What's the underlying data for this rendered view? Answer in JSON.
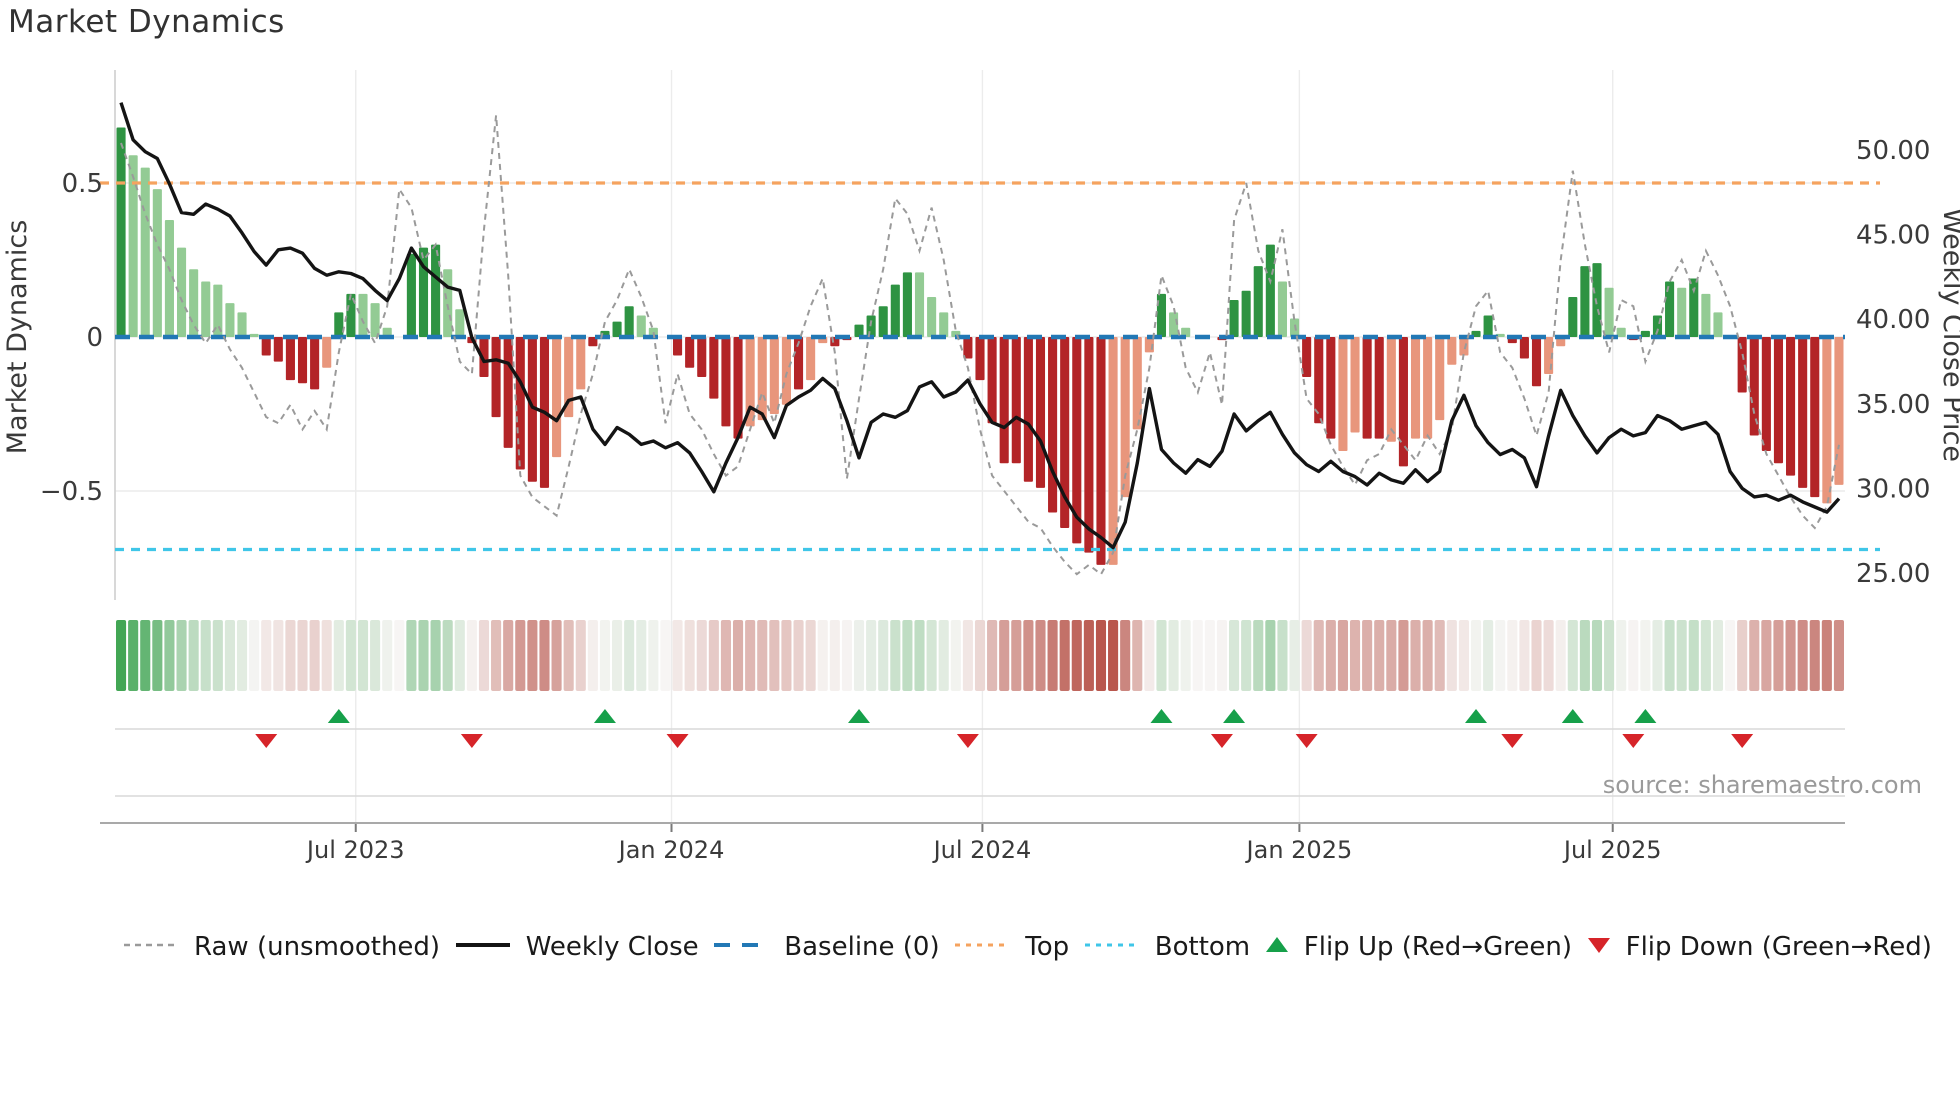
{
  "title": "Market Dynamics",
  "source_text": "source: sharemaestro.com",
  "y_axis_left": {
    "label": "Market Dynamics",
    "ticks": [
      {
        "label": "0.5",
        "value": 0.5
      },
      {
        "label": "0",
        "value": 0
      },
      {
        "label": "−0.5",
        "value": -0.5
      }
    ]
  },
  "y_axis_right": {
    "label": "Weekly Close Price",
    "ticks": [
      {
        "label": "50.00",
        "value": 50
      },
      {
        "label": "45.00",
        "value": 45
      },
      {
        "label": "40.00",
        "value": 40
      },
      {
        "label": "35.00",
        "value": 35
      },
      {
        "label": "30.00",
        "value": 30
      },
      {
        "label": "25.00",
        "value": 25
      }
    ]
  },
  "x_axis": {
    "ticks": [
      {
        "label": "Jul 2023",
        "week": 19.4
      },
      {
        "label": "Jan 2024",
        "week": 45.5
      },
      {
        "label": "Jul 2024",
        "week": 71.2
      },
      {
        "label": "Jan 2025",
        "week": 97.4
      },
      {
        "label": "Jul 2025",
        "week": 123.3
      }
    ]
  },
  "legend": {
    "items": [
      {
        "label": "Raw (unsmoothed)",
        "key": "raw"
      },
      {
        "label": "Weekly Close",
        "key": "close"
      },
      {
        "label": "Baseline (0)",
        "key": "baseline"
      },
      {
        "label": "Top",
        "key": "top"
      },
      {
        "label": "Bottom",
        "key": "bottom"
      },
      {
        "label": "Flip Up (Red→Green)",
        "key": "flip_up"
      },
      {
        "label": "Flip Down (Green→Red)",
        "key": "flip_down"
      }
    ]
  },
  "colors": {
    "bar_green_dark": "#2e9342",
    "bar_green_light": "#93cb94",
    "bar_red_dark": "#b32427",
    "bar_red_light": "#e8967c",
    "baseline_blue": "#2278b5",
    "top_orange": "#f5a35f",
    "bottom_cyan": "#3fc6e8",
    "raw_gray": "#9a9a9a",
    "close_black": "#141414",
    "flip_up_green": "#16a04a",
    "flip_down_red": "#d62429",
    "heat_green": "#2f9e44",
    "heat_red": "#b8554b",
    "heat_mid": "#f7f5f4",
    "grid": "#ececec",
    "grid_dark": "#d9d9d9",
    "axis_line": "#a9a9a9",
    "tick_text": "#3a3a3a",
    "source_gray": "#9a9a9a"
  },
  "chart_data": {
    "type": "combo",
    "subtype": [
      "bar",
      "line",
      "heatmap",
      "markers"
    ],
    "title": "Market Dynamics",
    "xlabel": "",
    "ylabel_left": "Market Dynamics",
    "ylabel_right": "Weekly Close Price",
    "weeks": 143,
    "x_range_note": "weekly data, ticks Jul 2023 / Jan 2024 / Jul 2024 / Jan 2025 / Jul 2025",
    "left_ylim": [
      -0.87,
      0.87
    ],
    "right_ylim": [
      23.4,
      54.7
    ],
    "baseline": 0,
    "top_threshold": 0.5,
    "bottom_threshold": -0.69,
    "grid": true,
    "legend_position": "bottom",
    "bars_values": [
      0.68,
      0.59,
      0.55,
      0.48,
      0.38,
      0.29,
      0.22,
      0.18,
      0.17,
      0.11,
      0.08,
      0.01,
      -0.06,
      -0.08,
      -0.14,
      -0.15,
      -0.17,
      -0.1,
      0.08,
      0.14,
      0.14,
      0.11,
      0.03,
      0.0,
      0.27,
      0.29,
      0.3,
      0.22,
      0.09,
      -0.02,
      -0.13,
      -0.26,
      -0.36,
      -0.43,
      -0.47,
      -0.49,
      -0.39,
      -0.26,
      -0.17,
      -0.03,
      0.02,
      0.05,
      0.1,
      0.07,
      0.03,
      0.0,
      -0.06,
      -0.1,
      -0.13,
      -0.2,
      -0.29,
      -0.33,
      -0.29,
      -0.27,
      -0.25,
      -0.22,
      -0.17,
      -0.14,
      -0.02,
      -0.03,
      -0.01,
      0.04,
      0.07,
      0.1,
      0.17,
      0.21,
      0.21,
      0.13,
      0.08,
      0.02,
      -0.07,
      -0.14,
      -0.28,
      -0.41,
      -0.41,
      -0.47,
      -0.49,
      -0.57,
      -0.62,
      -0.67,
      -0.7,
      -0.74,
      -0.74,
      -0.52,
      -0.3,
      -0.05,
      0.14,
      0.08,
      0.03,
      0.0,
      0.0,
      -0.01,
      0.12,
      0.15,
      0.23,
      0.3,
      0.18,
      0.06,
      -0.13,
      -0.28,
      -0.33,
      -0.37,
      -0.31,
      -0.33,
      -0.33,
      -0.34,
      -0.42,
      -0.33,
      -0.33,
      -0.27,
      -0.09,
      -0.06,
      0.02,
      0.07,
      0.01,
      -0.02,
      -0.07,
      -0.16,
      -0.12,
      -0.03,
      0.13,
      0.23,
      0.24,
      0.16,
      0.03,
      -0.01,
      0.02,
      0.07,
      0.18,
      0.16,
      0.19,
      0.14,
      0.08,
      0.0,
      -0.18,
      -0.32,
      -0.37,
      -0.41,
      -0.45,
      -0.49,
      -0.52,
      -0.54,
      -0.48
    ],
    "bars_shade": "DLLLLLLLLLLLDDDDDLDDLLLLDDDLLDDDDDDDLLLDDDDLLLDDDDDDLLLLDLLDDDDDDDLLLLDDDDDDDDDDDDLLLLDLLLLDDDDDLLDDDLLDDLDLLLLLDDLDDDLLDDDLLDDDDLDLLLDDDDDDDLL",
    "weekly_close": [
      52.8,
      50.6,
      49.9,
      49.5,
      48.0,
      46.3,
      46.2,
      46.8,
      46.5,
      46.1,
      45.1,
      44.0,
      43.2,
      44.1,
      44.2,
      43.9,
      43.0,
      42.6,
      42.8,
      42.7,
      42.4,
      41.7,
      41.1,
      42.4,
      44.2,
      43.1,
      42.5,
      41.9,
      41.7,
      38.9,
      37.5,
      37.6,
      37.4,
      36.3,
      34.8,
      34.5,
      34.0,
      35.2,
      35.4,
      33.5,
      32.6,
      33.6,
      33.2,
      32.6,
      32.8,
      32.4,
      32.7,
      32.1,
      31.0,
      29.8,
      31.5,
      33.0,
      34.8,
      34.4,
      33.0,
      34.9,
      35.4,
      35.8,
      36.5,
      35.9,
      34.0,
      31.8,
      33.9,
      34.4,
      34.2,
      34.6,
      36.0,
      36.3,
      35.4,
      35.7,
      36.4,
      35.0,
      33.9,
      33.6,
      34.2,
      33.8,
      32.8,
      31.0,
      29.5,
      28.3,
      27.6,
      27.1,
      26.5,
      28.0,
      31.5,
      35.9,
      32.3,
      31.5,
      30.9,
      31.7,
      31.3,
      32.2,
      34.4,
      33.4,
      34.0,
      34.5,
      33.2,
      32.1,
      31.4,
      31.0,
      31.6,
      31.0,
      30.7,
      30.2,
      30.9,
      30.5,
      30.3,
      31.1,
      30.4,
      31.0,
      34.0,
      35.5,
      33.7,
      32.7,
      32.0,
      32.3,
      31.8,
      30.1,
      33.1,
      35.8,
      34.3,
      33.1,
      32.1,
      33.0,
      33.5,
      33.1,
      33.3,
      34.3,
      34.0,
      33.5,
      33.7,
      33.9,
      33.2,
      31.0,
      30.0,
      29.5,
      29.6,
      29.3,
      29.6,
      29.2,
      28.9,
      28.6,
      29.4
    ],
    "raw_values": [
      0.63,
      0.52,
      0.4,
      0.3,
      0.22,
      0.12,
      0.04,
      -0.02,
      0.04,
      -0.04,
      -0.1,
      -0.18,
      -0.26,
      -0.28,
      -0.22,
      -0.3,
      -0.24,
      -0.3,
      -0.05,
      0.14,
      0.05,
      -0.02,
      0.1,
      0.48,
      0.42,
      0.25,
      0.3,
      0.1,
      -0.08,
      -0.12,
      0.35,
      0.72,
      0.2,
      -0.45,
      -0.52,
      -0.55,
      -0.58,
      -0.42,
      -0.25,
      -0.12,
      0.05,
      0.12,
      0.22,
      0.13,
      0.02,
      -0.28,
      -0.12,
      -0.25,
      -0.3,
      -0.38,
      -0.45,
      -0.42,
      -0.3,
      -0.18,
      -0.28,
      -0.12,
      -0.02,
      0.1,
      0.19,
      -0.05,
      -0.46,
      -0.2,
      0.05,
      0.22,
      0.45,
      0.4,
      0.28,
      0.42,
      0.25,
      0.02,
      -0.1,
      -0.3,
      -0.45,
      -0.5,
      -0.55,
      -0.6,
      -0.62,
      -0.68,
      -0.73,
      -0.77,
      -0.74,
      -0.77,
      -0.7,
      -0.45,
      -0.3,
      -0.1,
      0.2,
      0.1,
      -0.1,
      -0.18,
      -0.05,
      -0.22,
      0.38,
      0.5,
      0.28,
      0.18,
      0.35,
      0.05,
      -0.2,
      -0.25,
      -0.35,
      -0.42,
      -0.48,
      -0.4,
      -0.38,
      -0.3,
      -0.35,
      -0.4,
      -0.32,
      -0.38,
      -0.3,
      -0.05,
      0.1,
      0.15,
      -0.05,
      -0.1,
      -0.2,
      -0.32,
      -0.18,
      0.25,
      0.54,
      0.3,
      0.1,
      -0.05,
      0.12,
      0.1,
      -0.08,
      0.02,
      0.18,
      0.25,
      0.15,
      0.28,
      0.2,
      0.1,
      -0.05,
      -0.25,
      -0.38,
      -0.45,
      -0.52,
      -0.58,
      -0.62,
      -0.55,
      -0.35
    ],
    "flip_up_weeks": [
      18,
      40,
      61,
      86,
      92,
      112,
      120,
      126
    ],
    "flip_down_weeks": [
      12,
      29,
      46,
      70,
      91,
      98,
      115,
      125,
      134
    ]
  }
}
